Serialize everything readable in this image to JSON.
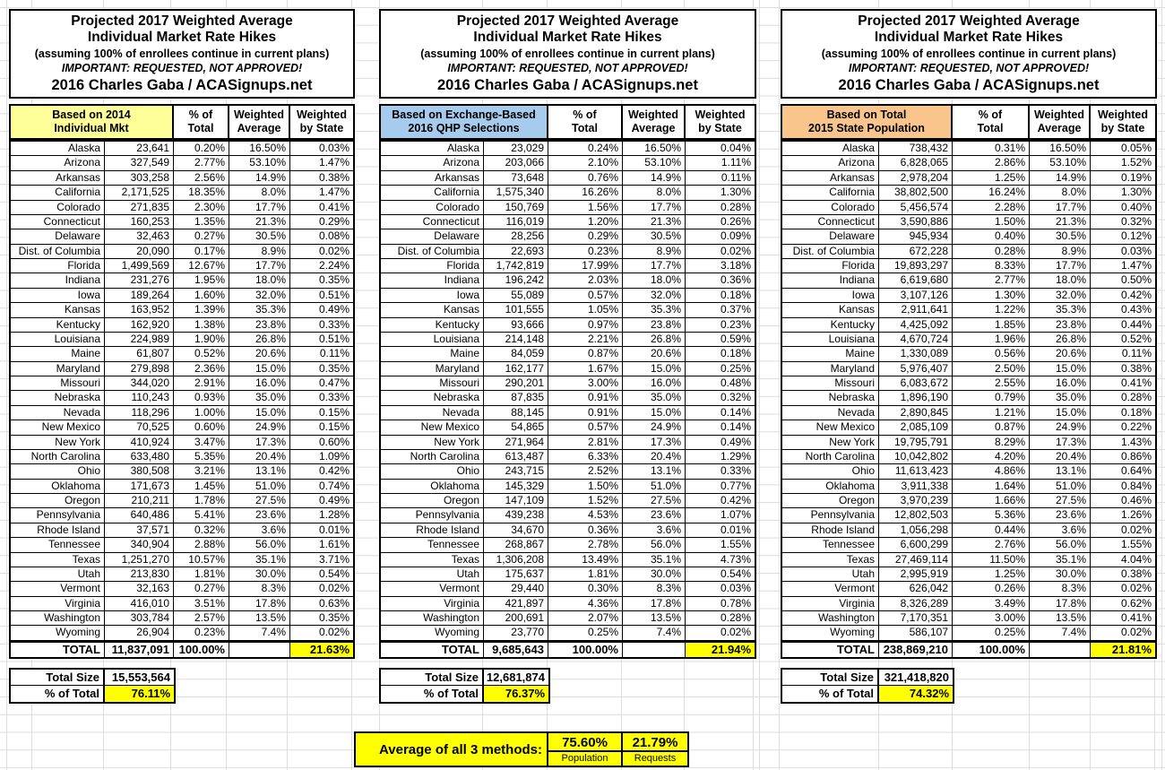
{
  "chart_data": {
    "type": "table",
    "title_line1": "Projected 2017 Weighted Average",
    "title_line2": "Individual Market Rate Hikes",
    "subtitle": "(assuming 100% of enrollees continue in current plans)",
    "warning": "IMPORTANT: REQUESTED, NOT APPROVED!",
    "byline": "2016 Charles Gaba / ACASignups.net",
    "col_headers": [
      [
        "% of",
        "Total"
      ],
      [
        "Weighted",
        "Average"
      ],
      [
        "Weighted",
        "by State"
      ]
    ],
    "tables": [
      {
        "basis": [
          "Based on 2014",
          "Individual Mkt"
        ],
        "header_color": "#FFFF99",
        "rows": [
          [
            "Alaska",
            "23,641",
            "0.20%",
            "16.50%",
            "0.03%"
          ],
          [
            "Arizona",
            "327,549",
            "2.77%",
            "53.10%",
            "1.47%"
          ],
          [
            "Arkansas",
            "303,258",
            "2.56%",
            "14.9%",
            "0.38%"
          ],
          [
            "California",
            "2,171,525",
            "18.35%",
            "8.0%",
            "1.47%"
          ],
          [
            "Colorado",
            "271,835",
            "2.30%",
            "17.7%",
            "0.41%"
          ],
          [
            "Connecticut",
            "160,253",
            "1.35%",
            "21.3%",
            "0.29%"
          ],
          [
            "Delaware",
            "32,463",
            "0.27%",
            "30.5%",
            "0.08%"
          ],
          [
            "Dist. of Columbia",
            "20,090",
            "0.17%",
            "8.9%",
            "0.02%"
          ],
          [
            "Florida",
            "1,499,569",
            "12.67%",
            "17.7%",
            "2.24%"
          ],
          [
            "Indiana",
            "231,276",
            "1.95%",
            "18.0%",
            "0.35%"
          ],
          [
            "Iowa",
            "189,264",
            "1.60%",
            "32.0%",
            "0.51%"
          ],
          [
            "Kansas",
            "163,952",
            "1.39%",
            "35.3%",
            "0.49%"
          ],
          [
            "Kentucky",
            "162,920",
            "1.38%",
            "23.8%",
            "0.33%"
          ],
          [
            "Louisiana",
            "224,989",
            "1.90%",
            "26.8%",
            "0.51%"
          ],
          [
            "Maine",
            "61,807",
            "0.52%",
            "20.6%",
            "0.11%"
          ],
          [
            "Maryland",
            "279,898",
            "2.36%",
            "15.0%",
            "0.35%"
          ],
          [
            "Missouri",
            "344,020",
            "2.91%",
            "16.0%",
            "0.47%"
          ],
          [
            "Nebraska",
            "110,243",
            "0.93%",
            "35.0%",
            "0.33%"
          ],
          [
            "Nevada",
            "118,296",
            "1.00%",
            "15.0%",
            "0.15%"
          ],
          [
            "New Mexico",
            "70,525",
            "0.60%",
            "24.9%",
            "0.15%"
          ],
          [
            "New York",
            "410,924",
            "3.47%",
            "17.3%",
            "0.60%"
          ],
          [
            "North Carolina",
            "633,480",
            "5.35%",
            "20.4%",
            "1.09%"
          ],
          [
            "Ohio",
            "380,508",
            "3.21%",
            "13.1%",
            "0.42%"
          ],
          [
            "Oklahoma",
            "171,673",
            "1.45%",
            "51.0%",
            "0.74%"
          ],
          [
            "Oregon",
            "210,211",
            "1.78%",
            "27.5%",
            "0.49%"
          ],
          [
            "Pennsylvania",
            "640,486",
            "5.41%",
            "23.6%",
            "1.28%"
          ],
          [
            "Rhode Island",
            "37,571",
            "0.32%",
            "3.6%",
            "0.01%"
          ],
          [
            "Tennessee",
            "340,904",
            "2.88%",
            "56.0%",
            "1.61%"
          ],
          [
            "Texas",
            "1,251,270",
            "10.57%",
            "35.1%",
            "3.71%"
          ],
          [
            "Utah",
            "213,830",
            "1.81%",
            "30.0%",
            "0.54%"
          ],
          [
            "Vermont",
            "32,163",
            "0.27%",
            "8.3%",
            "0.02%"
          ],
          [
            "Virginia",
            "416,010",
            "3.51%",
            "17.8%",
            "0.63%"
          ],
          [
            "Washington",
            "303,784",
            "2.57%",
            "13.5%",
            "0.35%"
          ],
          [
            "Wyoming",
            "26,904",
            "0.23%",
            "7.4%",
            "0.02%"
          ]
        ],
        "total_row": {
          "label": "TOTAL",
          "value": "11,837,091",
          "pct": "100.00%",
          "weighted_by_state": "21.63%"
        },
        "total_size": {
          "label": "Total Size",
          "value": "15,553,564"
        },
        "pct_of_total": {
          "label": "% of Total",
          "value": "76.11%"
        }
      },
      {
        "basis": [
          "Based on Exchange-Based",
          "2016 QHP Selections"
        ],
        "header_color": "#A6CBEC",
        "rows": [
          [
            "Alaska",
            "23,029",
            "0.24%",
            "16.50%",
            "0.04%"
          ],
          [
            "Arizona",
            "203,066",
            "2.10%",
            "53.10%",
            "1.11%"
          ],
          [
            "Arkansas",
            "73,648",
            "0.76%",
            "14.9%",
            "0.11%"
          ],
          [
            "California",
            "1,575,340",
            "16.26%",
            "8.0%",
            "1.30%"
          ],
          [
            "Colorado",
            "150,769",
            "1.56%",
            "17.7%",
            "0.28%"
          ],
          [
            "Connecticut",
            "116,019",
            "1.20%",
            "21.3%",
            "0.26%"
          ],
          [
            "Delaware",
            "28,256",
            "0.29%",
            "30.5%",
            "0.09%"
          ],
          [
            "Dist. of Columbia",
            "22,693",
            "0.23%",
            "8.9%",
            "0.02%"
          ],
          [
            "Florida",
            "1,742,819",
            "17.99%",
            "17.7%",
            "3.18%"
          ],
          [
            "Indiana",
            "196,242",
            "2.03%",
            "18.0%",
            "0.36%"
          ],
          [
            "Iowa",
            "55,089",
            "0.57%",
            "32.0%",
            "0.18%"
          ],
          [
            "Kansas",
            "101,555",
            "1.05%",
            "35.3%",
            "0.37%"
          ],
          [
            "Kentucky",
            "93,666",
            "0.97%",
            "23.8%",
            "0.23%"
          ],
          [
            "Louisiana",
            "214,148",
            "2.21%",
            "26.8%",
            "0.59%"
          ],
          [
            "Maine",
            "84,059",
            "0.87%",
            "20.6%",
            "0.18%"
          ],
          [
            "Maryland",
            "162,177",
            "1.67%",
            "15.0%",
            "0.25%"
          ],
          [
            "Missouri",
            "290,201",
            "3.00%",
            "16.0%",
            "0.48%"
          ],
          [
            "Nebraska",
            "87,835",
            "0.91%",
            "35.0%",
            "0.32%"
          ],
          [
            "Nevada",
            "88,145",
            "0.91%",
            "15.0%",
            "0.14%"
          ],
          [
            "New Mexico",
            "54,865",
            "0.57%",
            "24.9%",
            "0.14%"
          ],
          [
            "New York",
            "271,964",
            "2.81%",
            "17.3%",
            "0.49%"
          ],
          [
            "North Carolina",
            "613,487",
            "6.33%",
            "20.4%",
            "1.29%"
          ],
          [
            "Ohio",
            "243,715",
            "2.52%",
            "13.1%",
            "0.33%"
          ],
          [
            "Oklahoma",
            "145,329",
            "1.50%",
            "51.0%",
            "0.77%"
          ],
          [
            "Oregon",
            "147,109",
            "1.52%",
            "27.5%",
            "0.42%"
          ],
          [
            "Pennsylvania",
            "439,238",
            "4.53%",
            "23.6%",
            "1.07%"
          ],
          [
            "Rhode Island",
            "34,670",
            "0.36%",
            "3.6%",
            "0.01%"
          ],
          [
            "Tennessee",
            "268,867",
            "2.78%",
            "56.0%",
            "1.55%"
          ],
          [
            "Texas",
            "1,306,208",
            "13.49%",
            "35.1%",
            "4.73%"
          ],
          [
            "Utah",
            "175,637",
            "1.81%",
            "30.0%",
            "0.54%"
          ],
          [
            "Vermont",
            "29,440",
            "0.30%",
            "8.3%",
            "0.03%"
          ],
          [
            "Virginia",
            "421,897",
            "4.36%",
            "17.8%",
            "0.78%"
          ],
          [
            "Washington",
            "200,691",
            "2.07%",
            "13.5%",
            "0.28%"
          ],
          [
            "Wyoming",
            "23,770",
            "0.25%",
            "7.4%",
            "0.02%"
          ]
        ],
        "total_row": {
          "label": "TOTAL",
          "value": "9,685,643",
          "pct": "100.00%",
          "weighted_by_state": "21.94%"
        },
        "total_size": {
          "label": "Total Size",
          "value": "12,681,874"
        },
        "pct_of_total": {
          "label": "% of Total",
          "value": "76.37%"
        }
      },
      {
        "basis": [
          "Based on Total",
          "2015 State Population"
        ],
        "header_color": "#FAC58D",
        "rows": [
          [
            "Alaska",
            "738,432",
            "0.31%",
            "16.50%",
            "0.05%"
          ],
          [
            "Arizona",
            "6,828,065",
            "2.86%",
            "53.10%",
            "1.52%"
          ],
          [
            "Arkansas",
            "2,978,204",
            "1.25%",
            "14.9%",
            "0.19%"
          ],
          [
            "California",
            "38,802,500",
            "16.24%",
            "8.0%",
            "1.30%"
          ],
          [
            "Colorado",
            "5,456,574",
            "2.28%",
            "17.7%",
            "0.40%"
          ],
          [
            "Connecticut",
            "3,590,886",
            "1.50%",
            "21.3%",
            "0.32%"
          ],
          [
            "Delaware",
            "945,934",
            "0.40%",
            "30.5%",
            "0.12%"
          ],
          [
            "Dist. of Columbia",
            "672,228",
            "0.28%",
            "8.9%",
            "0.03%"
          ],
          [
            "Florida",
            "19,893,297",
            "8.33%",
            "17.7%",
            "1.47%"
          ],
          [
            "Indiana",
            "6,619,680",
            "2.77%",
            "18.0%",
            "0.50%"
          ],
          [
            "Iowa",
            "3,107,126",
            "1.30%",
            "32.0%",
            "0.42%"
          ],
          [
            "Kansas",
            "2,911,641",
            "1.22%",
            "35.3%",
            "0.43%"
          ],
          [
            "Kentucky",
            "4,425,092",
            "1.85%",
            "23.8%",
            "0.44%"
          ],
          [
            "Louisiana",
            "4,670,724",
            "1.96%",
            "26.8%",
            "0.52%"
          ],
          [
            "Maine",
            "1,330,089",
            "0.56%",
            "20.6%",
            "0.11%"
          ],
          [
            "Maryland",
            "5,976,407",
            "2.50%",
            "15.0%",
            "0.38%"
          ],
          [
            "Missouri",
            "6,083,672",
            "2.55%",
            "16.0%",
            "0.41%"
          ],
          [
            "Nebraska",
            "1,896,190",
            "0.79%",
            "35.0%",
            "0.28%"
          ],
          [
            "Nevada",
            "2,890,845",
            "1.21%",
            "15.0%",
            "0.18%"
          ],
          [
            "New Mexico",
            "2,085,109",
            "0.87%",
            "24.9%",
            "0.22%"
          ],
          [
            "New York",
            "19,795,791",
            "8.29%",
            "17.3%",
            "1.43%"
          ],
          [
            "North Carolina",
            "10,042,802",
            "4.20%",
            "20.4%",
            "0.86%"
          ],
          [
            "Ohio",
            "11,613,423",
            "4.86%",
            "13.1%",
            "0.64%"
          ],
          [
            "Oklahoma",
            "3,911,338",
            "1.64%",
            "51.0%",
            "0.84%"
          ],
          [
            "Oregon",
            "3,970,239",
            "1.66%",
            "27.5%",
            "0.46%"
          ],
          [
            "Pennsylvania",
            "12,802,503",
            "5.36%",
            "23.6%",
            "1.26%"
          ],
          [
            "Rhode Island",
            "1,056,298",
            "0.44%",
            "3.6%",
            "0.02%"
          ],
          [
            "Tennessee",
            "6,600,299",
            "2.76%",
            "56.0%",
            "1.55%"
          ],
          [
            "Texas",
            "27,469,114",
            "11.50%",
            "35.1%",
            "4.04%"
          ],
          [
            "Utah",
            "2,995,919",
            "1.25%",
            "30.0%",
            "0.38%"
          ],
          [
            "Vermont",
            "626,042",
            "0.26%",
            "8.3%",
            "0.02%"
          ],
          [
            "Virginia",
            "8,326,289",
            "3.49%",
            "17.8%",
            "0.62%"
          ],
          [
            "Washington",
            "7,170,351",
            "3.00%",
            "13.5%",
            "0.41%"
          ],
          [
            "Wyoming",
            "586,107",
            "0.25%",
            "7.4%",
            "0.02%"
          ]
        ],
        "total_row": {
          "label": "TOTAL",
          "value": "238,869,210",
          "pct": "100.00%",
          "weighted_by_state": "21.81%"
        },
        "total_size": {
          "label": "Total Size",
          "value": "321,418,820"
        },
        "pct_of_total": {
          "label": "% of Total",
          "value": "74.32%"
        }
      }
    ],
    "summary": {
      "label": "Average of all 3 methods:",
      "values": [
        {
          "value": "75.60%",
          "caption": "Population"
        },
        {
          "value": "21.79%",
          "caption": "Requests"
        }
      ]
    }
  },
  "colors": {
    "basis_yellow": "#FFFF99",
    "basis_blue": "#A6CBEC",
    "basis_orange": "#FAC58D",
    "highlight_yellow": "#FFFF00",
    "gridline_gray": "#DCDCDC"
  }
}
